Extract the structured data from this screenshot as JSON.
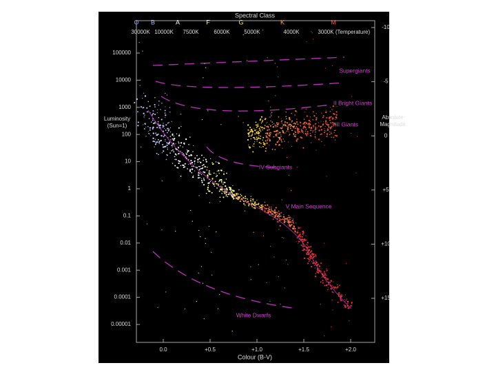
{
  "header": {
    "title": "Spectral Class",
    "temperature_label": "(Temperature)"
  },
  "spectral_classes": [
    "O",
    "B",
    "A",
    "F",
    "G",
    "K",
    "M"
  ],
  "temperatures": [
    "30000K",
    "10000K",
    "7500K",
    "6000K",
    "5000K",
    "4000K",
    "3000K"
  ],
  "luminosity_axis": {
    "label_lines": [
      "Luminosity",
      "(Sun=1)"
    ],
    "ticks": [
      "100000",
      "10000",
      "1000",
      "100",
      "10",
      "1",
      "0.1",
      "0.01",
      "0.001",
      "0.0001",
      "0.00001"
    ]
  },
  "magnitude_axis": {
    "label_lines": [
      "Absolute",
      "Magnitude"
    ],
    "ticks": [
      "-10",
      "-5",
      "0",
      "+5",
      "+10",
      "+15"
    ]
  },
  "colour_axis": {
    "label": "Colour (B-V)",
    "ticks": [
      "0.0",
      "+0.5",
      "+1.0",
      "+1.5",
      "+2.0"
    ]
  },
  "regions": [
    "Supergiants",
    "II Bright Giants",
    "III Giants",
    "IV Subgiants",
    "V Main Sequence",
    "White Dwarfs"
  ]
}
